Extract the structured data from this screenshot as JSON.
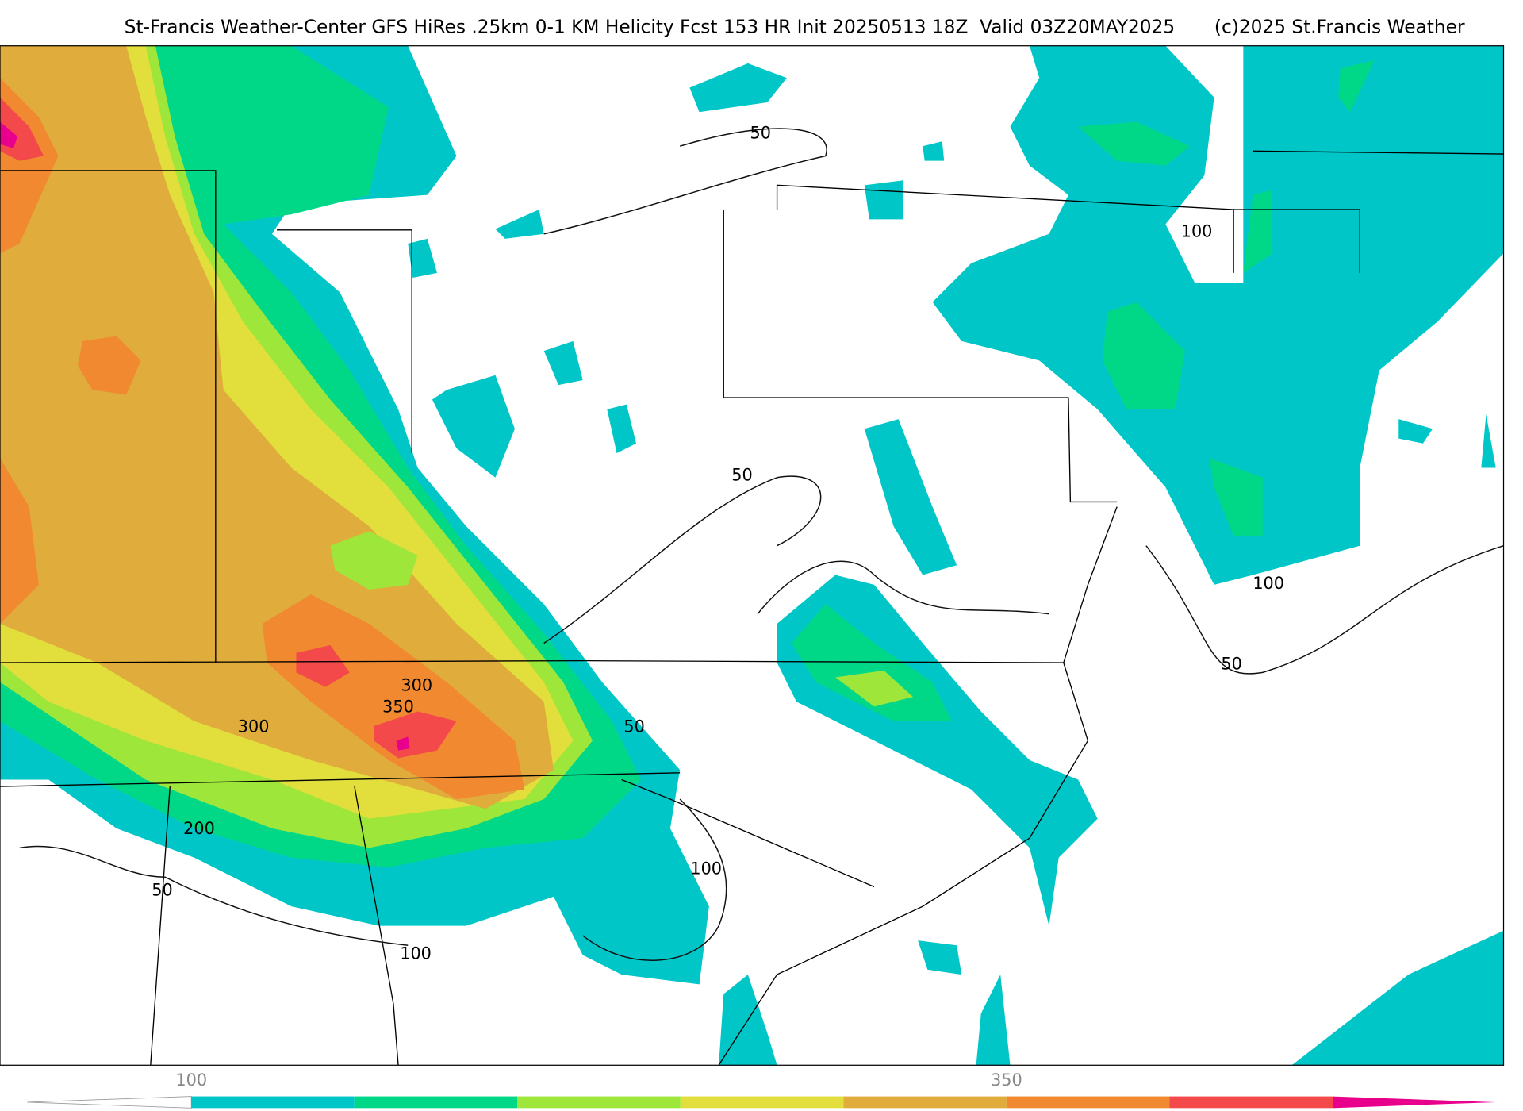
{
  "header": {
    "title": "St-Francis Weather-Center GFS HiRes .25km 0-1 KM Helicity Fcst 153 HR Init 20250513 18Z  Valid 03Z20MAY2025",
    "credit": "(c)2025 St.Francis Weather"
  },
  "contour_labels": [
    50,
    100,
    50,
    100,
    50,
    300,
    350,
    300,
    50,
    200,
    50,
    100,
    100
  ],
  "colorbar": {
    "colors": [
      "#00c6c8",
      "#00d888",
      "#9fe63a",
      "#e2de3c",
      "#e0ac3c",
      "#f0892f",
      "#f3494a"
    ],
    "ticks": [
      100,
      350
    ]
  }
}
